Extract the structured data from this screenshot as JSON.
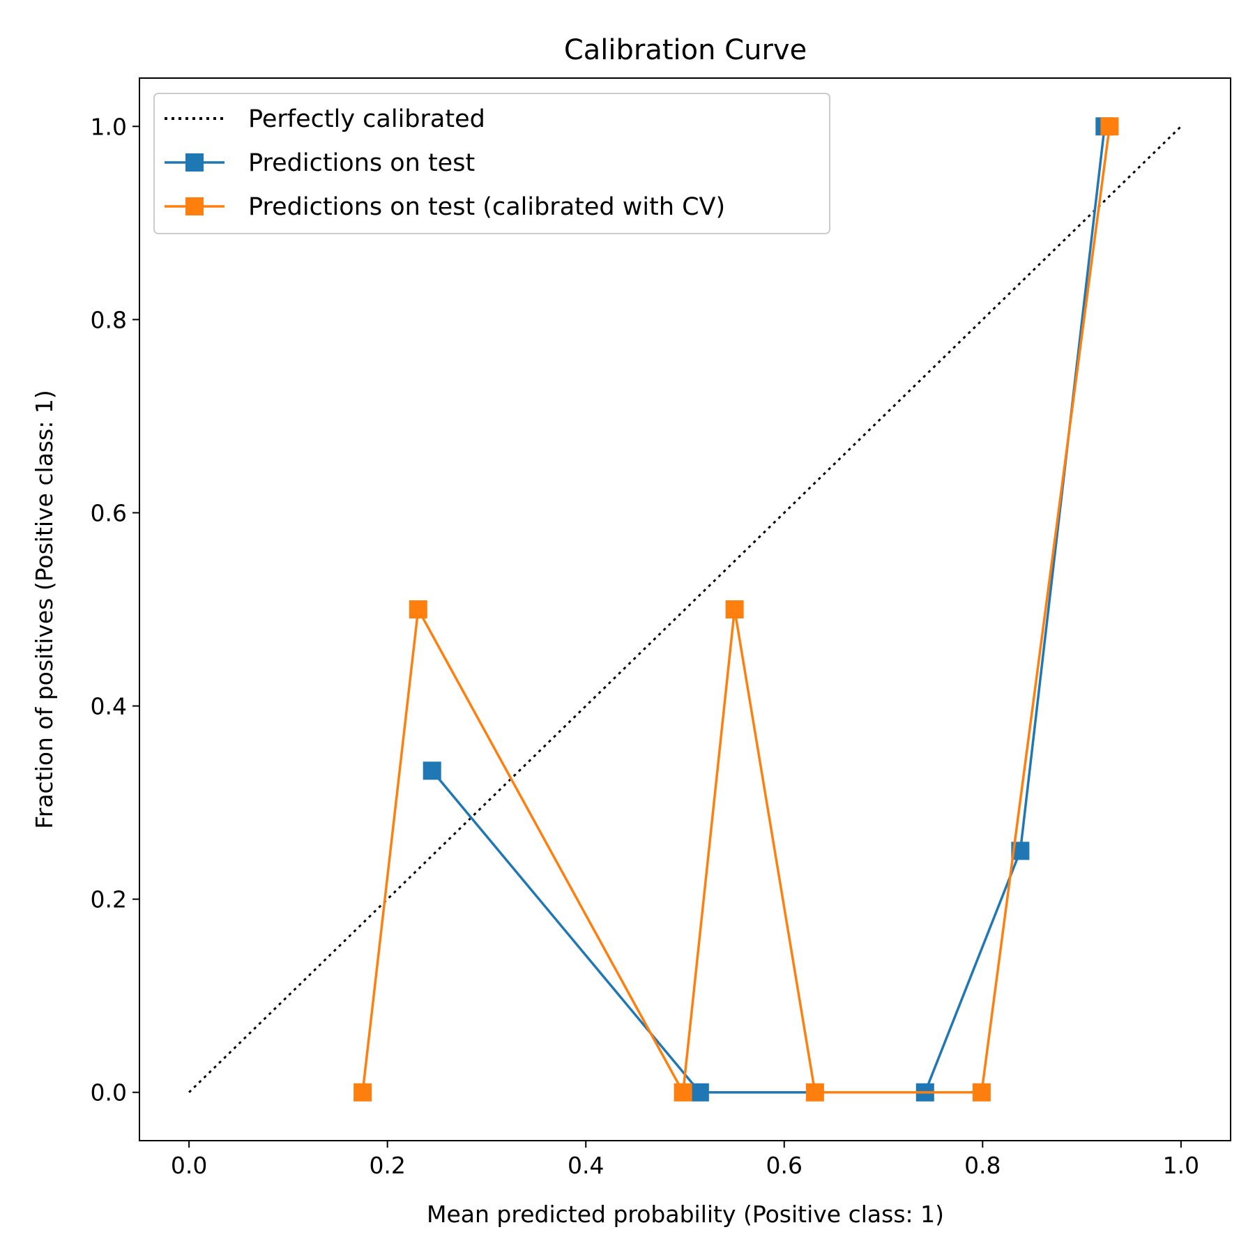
{
  "chart_data": {
    "type": "line",
    "title": "Calibration Curve",
    "xlabel": "Mean predicted probability (Positive class: 1)",
    "ylabel": "Fraction of positives (Positive class: 1)",
    "xlim": [
      -0.05,
      1.05
    ],
    "ylim": [
      -0.05,
      1.05
    ],
    "xticks": [
      0.0,
      0.2,
      0.4,
      0.6,
      0.8,
      1.0
    ],
    "yticks": [
      0.0,
      0.2,
      0.4,
      0.6,
      0.8,
      1.0
    ],
    "xtick_labels": [
      "0.0",
      "0.2",
      "0.4",
      "0.6",
      "0.8",
      "1.0"
    ],
    "ytick_labels": [
      "0.0",
      "0.2",
      "0.4",
      "0.6",
      "0.8",
      "1.0"
    ],
    "grid": false,
    "legend_position": "upper-left",
    "series": [
      {
        "name": "Perfectly calibrated",
        "style": "dotted",
        "marker": "none",
        "color": "#000000",
        "x": [
          0.0,
          1.0
        ],
        "y": [
          0.0,
          1.0
        ]
      },
      {
        "name": "Predictions on test",
        "style": "solid",
        "marker": "square",
        "color": "#1f77b4",
        "x": [
          0.245,
          0.515,
          0.742,
          0.838,
          0.923
        ],
        "y": [
          0.333,
          0.0,
          0.0,
          0.25,
          1.0
        ]
      },
      {
        "name": "Predictions on test (calibrated with CV)",
        "style": "solid",
        "marker": "square",
        "color": "#ff7f0e",
        "x": [
          0.175,
          0.231,
          0.498,
          0.55,
          0.631,
          0.799,
          0.928
        ],
        "y": [
          0.0,
          0.5,
          0.0,
          0.5,
          0.0,
          0.0,
          1.0
        ]
      }
    ]
  }
}
